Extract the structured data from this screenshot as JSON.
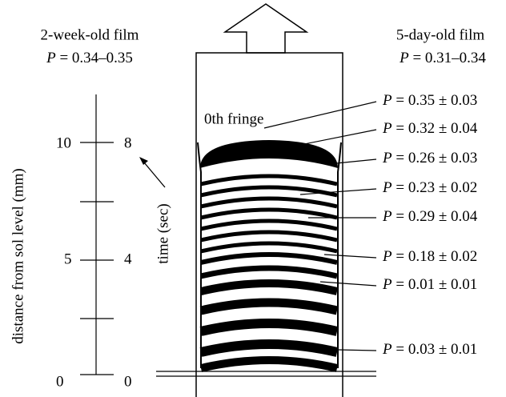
{
  "left_header": {
    "title": "2-week-old film",
    "var": "P",
    "range": "= 0.34–0.35"
  },
  "right_header": {
    "title": "5-day-old film",
    "var": "P",
    "range": "= 0.31–0.34"
  },
  "distance_axis": {
    "title": "distance from sol level (mm)",
    "ticks": [
      "0",
      "5",
      "10"
    ]
  },
  "time_axis": {
    "title": "time (sec)",
    "ticks": [
      "0",
      "4",
      "8"
    ]
  },
  "fringe_label": "0th fringe",
  "p_labels": [
    {
      "var": "P",
      "text": "= 0.35 ± 0.03"
    },
    {
      "var": "P",
      "text": "= 0.32 ± 0.04"
    },
    {
      "var": "P",
      "text": "= 0.26 ± 0.03"
    },
    {
      "var": "P",
      "text": "= 0.23 ± 0.02"
    },
    {
      "var": "P",
      "text": "= 0.29 ± 0.04"
    },
    {
      "var": "P",
      "text": "= 0.18 ± 0.02"
    },
    {
      "var": "P",
      "text": "= 0.01 ± 0.01"
    },
    {
      "var": "P",
      "text": "= 0.03 ± 0.01"
    }
  ]
}
